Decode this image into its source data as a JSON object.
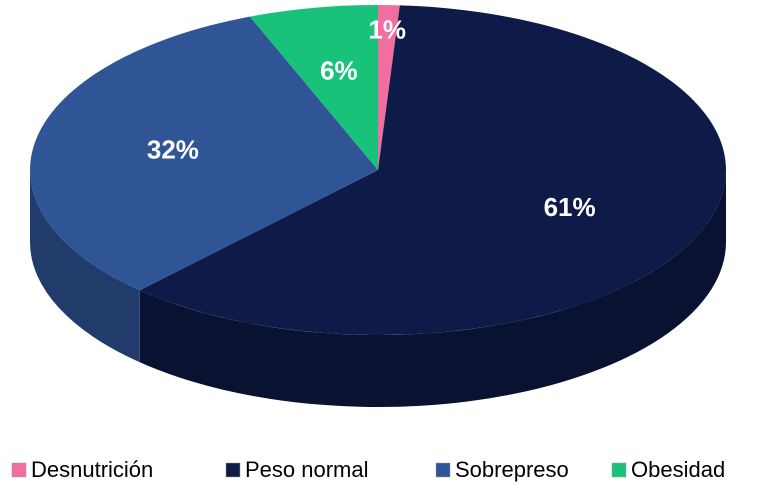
{
  "chart_data": {
    "type": "pie",
    "categories": [
      "Desnutrición",
      "Peso normal",
      "Sobrepreso",
      "Obesidad"
    ],
    "values": [
      1,
      61,
      32,
      6
    ],
    "value_labels": [
      "1%",
      "61%",
      "32%",
      "6%"
    ],
    "colors": [
      "#f06ea0",
      "#0e1a47",
      "#2f5597",
      "#19c27b"
    ],
    "legend": "bottom"
  }
}
